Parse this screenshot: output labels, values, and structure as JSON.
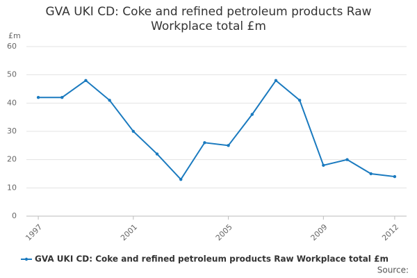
{
  "chart_data": {
    "type": "line",
    "title": "GVA UKI CD: Coke and refined petroleum products Raw Workplace total £m",
    "y_unit": "£m",
    "source": "Source:",
    "x": [
      1997,
      1998,
      1999,
      2000,
      2001,
      2002,
      2003,
      2004,
      2005,
      2006,
      2007,
      2008,
      2009,
      2010,
      2011,
      2012
    ],
    "series": [
      {
        "name": "GVA UKI CD: Coke and refined petroleum products Raw Workplace total £m",
        "color": "#1a7abf",
        "values": [
          42,
          42,
          48,
          41,
          30,
          22,
          13,
          26,
          25,
          36,
          48,
          41,
          18,
          20,
          15,
          14
        ]
      }
    ],
    "xlim": [
      1996.5,
      2012.5
    ],
    "xticks": [
      1997,
      2001,
      2005,
      2009,
      2012
    ],
    "ylim": [
      0,
      60
    ],
    "yticks": [
      0,
      10,
      20,
      30,
      40,
      50,
      60
    ],
    "grid": true
  }
}
